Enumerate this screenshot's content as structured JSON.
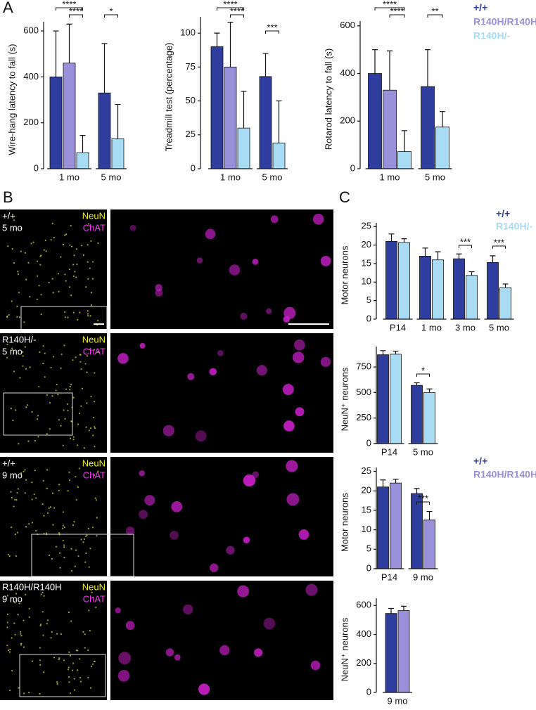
{
  "panel_labels": [
    "A",
    "B",
    "C"
  ],
  "panel_b": [
    {
      "genotype": "+/+",
      "age": "5 mo",
      "stains": [
        "NeuN",
        "ChAT"
      ]
    },
    {
      "genotype": "R140H/-",
      "age": "5 mo",
      "stains": [
        "NeuN",
        "ChAT"
      ]
    },
    {
      "genotype": "+/+",
      "age": "9 mo",
      "stains": [
        "NeuN",
        "ChAT"
      ]
    },
    {
      "genotype": "R140H/R140H",
      "age": "9 mo",
      "stains": [
        "NeuN",
        "ChAT"
      ]
    }
  ],
  "chart_data": [
    {
      "type": "bar",
      "ylabel": "Wire-hang latency to fall (s)",
      "categories": [
        "1 mo",
        "5 mo"
      ],
      "series": [
        {
          "color": "#2e3d9e",
          "values": [
            400,
            330
          ],
          "errors": [
            200,
            215
          ]
        },
        {
          "color": "#9a8fd9",
          "values": [
            460,
            null
          ],
          "errors": [
            170,
            null
          ]
        },
        {
          "color": "#a8dcf4",
          "values": [
            70,
            130
          ],
          "errors": [
            75,
            150
          ]
        }
      ],
      "ylim": [
        0,
        640
      ],
      "yticks": [
        0,
        200,
        400,
        600
      ],
      "significance": [
        "****",
        "****",
        "*"
      ]
    },
    {
      "type": "bar",
      "ylabel": "Treadmill test (percentage)",
      "categories": [
        "1 mo",
        "5 mo"
      ],
      "series": [
        {
          "color": "#2e3d9e",
          "values": [
            90,
            68
          ],
          "errors": [
            10,
            17
          ]
        },
        {
          "color": "#9a8fd9",
          "values": [
            75,
            null
          ],
          "errors": [
            33,
            null
          ]
        },
        {
          "color": "#a8dcf4",
          "values": [
            30,
            19
          ],
          "errors": [
            27,
            31
          ]
        }
      ],
      "ylim": [
        0,
        112
      ],
      "yticks": [
        0,
        25,
        50,
        75,
        100
      ],
      "significance": [
        "****",
        "****",
        "***"
      ]
    },
    {
      "type": "bar",
      "ylabel": "Rotarod latency to fall (s)",
      "categories": [
        "1 mo",
        "5 mo"
      ],
      "series": [
        {
          "name": "+/+",
          "color": "#2e3d9e",
          "values": [
            400,
            345
          ],
          "errors": [
            100,
            155
          ]
        },
        {
          "name": "R140H/R140H",
          "color": "#9a8fd9",
          "values": [
            330,
            null
          ],
          "errors": [
            165,
            null
          ]
        },
        {
          "name": "R140H/-",
          "color": "#a8dcf4",
          "values": [
            72,
            175
          ],
          "errors": [
            88,
            65
          ]
        }
      ],
      "ylim": [
        0,
        620
      ],
      "yticks": [
        0,
        200,
        400,
        600
      ],
      "significance": [
        "****",
        "****",
        "**"
      ]
    },
    {
      "type": "bar",
      "ylabel": "Motor neurons",
      "categories": [
        "P14",
        "1 mo",
        "3 mo",
        "5 mo"
      ],
      "series": [
        {
          "name": "+/+",
          "color": "#2e3d9e",
          "values": [
            21,
            17,
            16.3,
            15.3
          ],
          "errors": [
            2,
            2.2,
            1.3,
            1.8
          ]
        },
        {
          "name": "R140H/-",
          "color": "#a8dcf4",
          "values": [
            20.7,
            16,
            11.8,
            8.5
          ],
          "errors": [
            1,
            2.2,
            1,
            1
          ]
        }
      ],
      "ylim": [
        0,
        26
      ],
      "yticks": [
        0,
        5,
        10,
        15,
        20,
        25
      ],
      "significance": [
        "***",
        "***"
      ]
    },
    {
      "type": "bar",
      "ylabel": "NeuN⁺ neurons",
      "categories": [
        "P14",
        "5 mo"
      ],
      "series": [
        {
          "color": "#2e3d9e",
          "values": [
            870,
            570
          ],
          "errors": [
            40,
            25
          ]
        },
        {
          "color": "#a8dcf4",
          "values": [
            875,
            500
          ],
          "errors": [
            30,
            35
          ]
        }
      ],
      "ylim": [
        0,
        950
      ],
      "yticks": [
        0,
        250,
        500,
        750
      ],
      "significance": [
        "*"
      ]
    },
    {
      "type": "bar",
      "ylabel": "Motor neurons",
      "categories": [
        "P14",
        "9 mo"
      ],
      "series": [
        {
          "name": "+/+",
          "color": "#2e3d9e",
          "values": [
            21,
            19.3
          ],
          "errors": [
            1.8,
            1.3
          ]
        },
        {
          "name": "R140H/R140H",
          "color": "#9a8fd9",
          "values": [
            22,
            12.5
          ],
          "errors": [
            1,
            2.2
          ]
        }
      ],
      "ylim": [
        0,
        26
      ],
      "yticks": [
        0,
        5,
        10,
        15,
        20,
        25
      ],
      "significance": [
        "***"
      ]
    },
    {
      "type": "bar",
      "ylabel": "NeuN⁺ neurons",
      "categories": [
        "9 mo"
      ],
      "series": [
        {
          "color": "#2e3d9e",
          "values": [
            545
          ],
          "errors": [
            35
          ]
        },
        {
          "color": "#9a8fd9",
          "values": [
            565
          ],
          "errors": [
            30
          ]
        }
      ],
      "ylim": [
        0,
        650
      ],
      "yticks": [
        0,
        200,
        400,
        600
      ]
    }
  ]
}
